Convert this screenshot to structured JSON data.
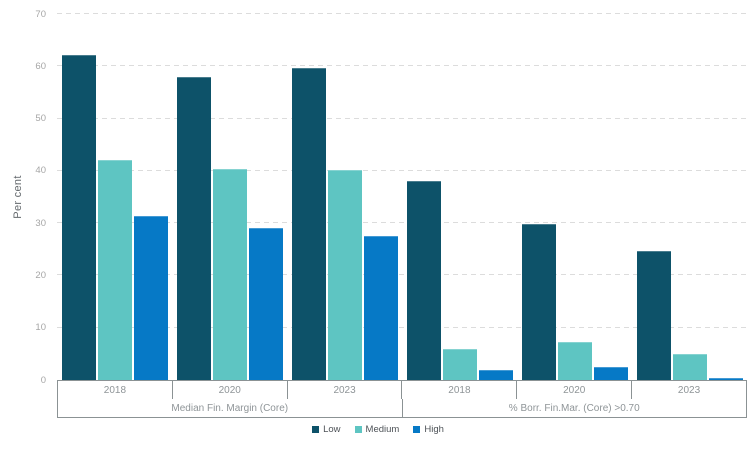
{
  "chart_data": {
    "type": "bar",
    "title": "",
    "ylabel": "Per cent",
    "ylim": [
      0,
      70
    ],
    "yticks": [
      0,
      10,
      20,
      30,
      40,
      50,
      60,
      70
    ],
    "grid": "horizontal-dashed",
    "legend_position": "bottom-center",
    "series_order": [
      "Low",
      "Medium",
      "High"
    ],
    "legend": [
      {
        "label": "Low",
        "color": "#0d5269"
      },
      {
        "label": "Medium",
        "color": "#5ec5c2"
      },
      {
        "label": "High",
        "color": "#0679c6"
      }
    ],
    "groups": [
      {
        "label": "Median Fin. Margin (Core)",
        "categories": [
          "2018",
          "2020",
          "2023"
        ],
        "series": {
          "Low": [
            62.2,
            58.0,
            59.6
          ],
          "Medium": [
            42.0,
            40.4,
            40.2
          ],
          "High": [
            31.4,
            29.1,
            27.6
          ]
        }
      },
      {
        "label": "% Borr. Fin.Mar. (Core) >0.70",
        "categories": [
          "2018",
          "2020",
          "2023"
        ],
        "series": {
          "Low": [
            38.0,
            29.8,
            24.6
          ],
          "Medium": [
            6.0,
            7.2,
            5.0
          ],
          "High": [
            2.0,
            2.5,
            0.4
          ]
        }
      }
    ],
    "colors": {
      "gridline": "#dcdcdc",
      "axis_line": "#8b9294",
      "tick_text": "#a6a6a6",
      "category_text": "#8f9598",
      "legend_text": "#4d5257",
      "ylabel_text": "#63686c"
    }
  }
}
